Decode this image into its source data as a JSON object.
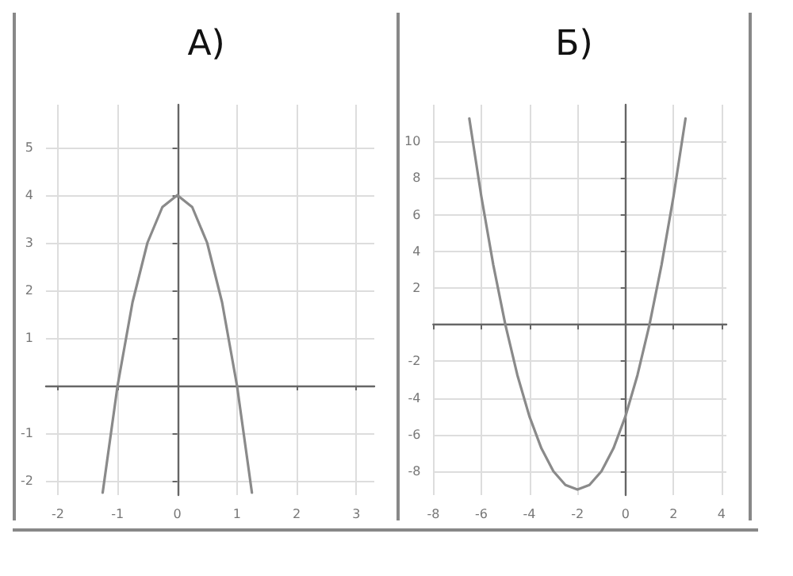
{
  "chart_data": [
    {
      "type": "line",
      "title": "А)",
      "x": [
        -1.25,
        -1,
        -0.75,
        -0.5,
        -0.25,
        0,
        0.25,
        0.5,
        0.75,
        1,
        1.25
      ],
      "series": [
        {
          "color": "#8a8a8a",
          "values": [
            -2.25,
            0,
            1.75,
            3,
            3.75,
            4,
            3.75,
            3,
            1.75,
            0,
            -2.25
          ]
        }
      ],
      "xlim": [
        -2.2,
        3.3
      ],
      "xticks": [
        -2,
        -1,
        0,
        1,
        2,
        3
      ],
      "ylim": [
        -2.3,
        5.9
      ],
      "yticks": [
        -2,
        -1,
        {
          "value": 0,
          "label": null
        },
        1,
        2,
        3,
        4,
        5
      ],
      "grid": true,
      "marker": "none",
      "line_style": "solid"
    },
    {
      "type": "line",
      "title": "Б)",
      "x": [
        -6.5,
        -6,
        -5.5,
        -5,
        -4.5,
        -4,
        -3.5,
        -3,
        -2.5,
        -2,
        -1.5,
        -1,
        -0.5,
        0,
        0.5,
        1,
        1.5,
        2,
        2.5
      ],
      "series": [
        {
          "color": "#8a8a8a",
          "values": [
            11.25,
            7,
            3.25,
            0,
            -2.75,
            -5,
            -6.75,
            -8,
            -8.75,
            -9,
            -8.75,
            -8,
            -6.75,
            -5,
            -2.75,
            0,
            3.25,
            7,
            11.25
          ]
        }
      ],
      "xlim": [
        -8,
        4.2
      ],
      "xticks": [
        -8,
        -6,
        -4,
        -2,
        0,
        2,
        4
      ],
      "ylim": [
        -9.3,
        12
      ],
      "yticks": [
        -8,
        -6,
        -4,
        -2,
        {
          "value": 0,
          "label": null
        },
        2,
        4,
        6,
        8,
        10
      ],
      "grid": true,
      "marker": "none",
      "line_style": "solid"
    }
  ]
}
